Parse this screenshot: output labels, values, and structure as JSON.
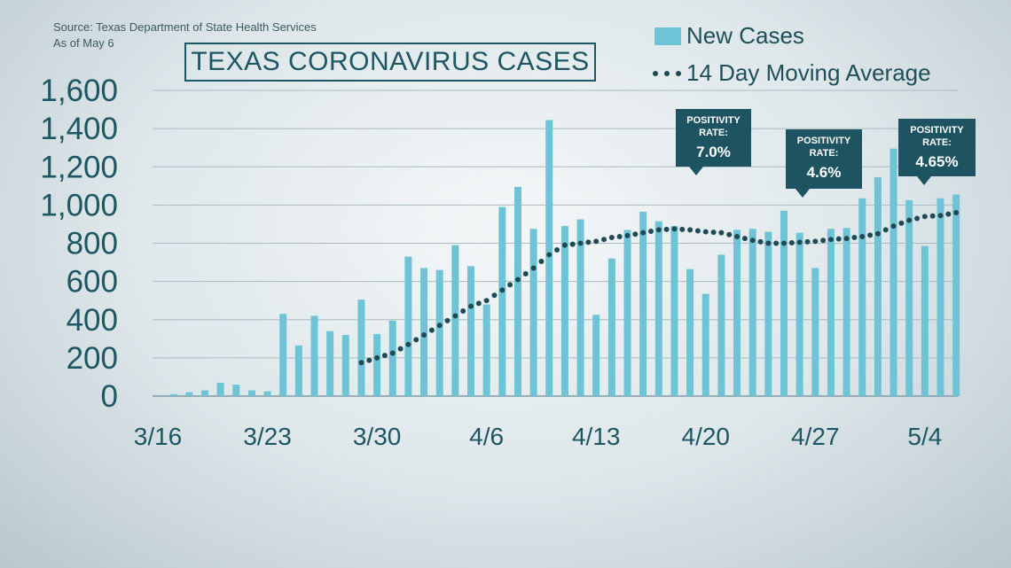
{
  "source_line": "Source: Texas Department of State Health Services",
  "as_of_line": "As of May 6",
  "colors": {
    "bar": "#6ec3d6",
    "line": "#1f4a53",
    "title": "#1d5764",
    "callout": "#1e5462"
  },
  "chart_data": {
    "type": "bar",
    "title": "TEXAS CORONAVIRUS CASES",
    "xlabel": "",
    "ylabel": "",
    "ylim": [
      0,
      1600
    ],
    "yticks": [
      0,
      200,
      400,
      600,
      800,
      1000,
      1200,
      1400,
      1600
    ],
    "ytick_labels": [
      "0",
      "200",
      "400",
      "600",
      "800",
      "1,000",
      "1,200",
      "1,400",
      "1,600"
    ],
    "xtick_labels": [
      "3/16",
      "3/23",
      "3/30",
      "4/6",
      "4/13",
      "4/20",
      "4/27",
      "5/4"
    ],
    "grid": true,
    "legend_position": "top-right",
    "categories": [
      "3/16",
      "3/17",
      "3/18",
      "3/19",
      "3/20",
      "3/21",
      "3/22",
      "3/23",
      "3/24",
      "3/25",
      "3/26",
      "3/27",
      "3/28",
      "3/29",
      "3/30",
      "3/31",
      "4/1",
      "4/2",
      "4/3",
      "4/4",
      "4/5",
      "4/6",
      "4/7",
      "4/8",
      "4/9",
      "4/10",
      "4/11",
      "4/12",
      "4/13",
      "4/14",
      "4/15",
      "4/16",
      "4/17",
      "4/18",
      "4/19",
      "4/20",
      "4/21",
      "4/22",
      "4/23",
      "4/24",
      "4/25",
      "4/26",
      "4/27",
      "4/28",
      "4/29",
      "4/30",
      "5/1",
      "5/2",
      "5/3",
      "5/4",
      "5/5",
      "5/6"
    ],
    "series": [
      {
        "name": "New Cases",
        "values": [
          0,
          10,
          20,
          30,
          70,
          60,
          30,
          25,
          430,
          265,
          420,
          340,
          320,
          505,
          325,
          395,
          730,
          670,
          660,
          790,
          680,
          480,
          990,
          1095,
          875,
          1445,
          890,
          925,
          425,
          720,
          870,
          965,
          915,
          890,
          665,
          535,
          740,
          870,
          875,
          860,
          970,
          855,
          670,
          875,
          880,
          1035,
          1145,
          1295,
          1025,
          785,
          1035,
          1055
        ]
      },
      {
        "name": "14 Day Moving Average",
        "values": [
          null,
          null,
          null,
          null,
          null,
          null,
          null,
          null,
          null,
          null,
          null,
          null,
          null,
          175,
          200,
          225,
          270,
          320,
          370,
          420,
          470,
          500,
          555,
          610,
          670,
          740,
          790,
          800,
          810,
          830,
          840,
          855,
          870,
          875,
          870,
          860,
          855,
          835,
          815,
          800,
          800,
          805,
          810,
          820,
          825,
          835,
          850,
          890,
          920,
          940,
          945,
          960
        ]
      }
    ],
    "annotations": [
      {
        "line1": "POSITIVITY",
        "line2": "RATE:",
        "value": "7.0%"
      },
      {
        "line1": "POSITIVITY",
        "line2": "RATE:",
        "value": "4.6%"
      },
      {
        "line1": "POSITIVITY",
        "line2": "RATE:",
        "value": "4.65%"
      }
    ]
  }
}
